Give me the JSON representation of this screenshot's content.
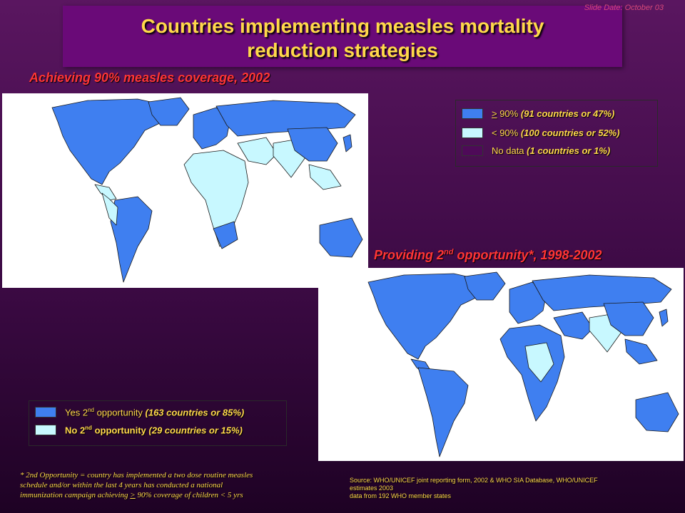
{
  "slide_date": "Slide Date: October 03",
  "title": {
    "line1": "Countries implementing measles mortality",
    "line2": "reduction strategies"
  },
  "map1": {
    "title": "Achieving 90% measles coverage, 2002",
    "legend": [
      {
        "marker": ">",
        "label": " 90%",
        "detail": " (91 countries or  47%)",
        "color": "#3f7ff0"
      },
      {
        "marker": "",
        "label": "< 90%",
        "detail": " (100 countries or 52%)",
        "color": "#c8f8ff"
      },
      {
        "marker": "",
        "label": "No data",
        "detail": " (1 countries or  1%)",
        "color": "#4e0a58"
      }
    ]
  },
  "map2": {
    "title_pre": "Providing 2",
    "title_sup": "nd",
    "title_post": " opportunity*, 1998-2002",
    "legend": [
      {
        "label_pre": "Yes 2",
        "label_sup": "nd",
        "label_post": " opportunity",
        "detail": " (163 countries or 85%)",
        "color": "#3f7ff0"
      },
      {
        "label_pre": "No 2",
        "label_sup": "nd",
        "label_post": " opportunity",
        "detail": " (29 countries or  15%)",
        "color": "#c8f8ff"
      }
    ]
  },
  "footnote": {
    "line1": "* 2nd Opportunity = country has implemented a two dose routine measles",
    "line2": "schedule and/or within the last 4 years has conducted a national",
    "line3_pre": "immunization campaign achieving ",
    "line3_marker": ">",
    "line3_post": " 90% coverage of children < 5 yrs"
  },
  "source": {
    "line1": "Source: WHO/UNICEF joint reporting form, 2002 & WHO SIA Database, WHO/UNICEF",
    "line2": "estimates 2003",
    "line3": "data from 192 WHO member states"
  },
  "colors": {
    "map_blue": "#3f7ff0",
    "map_light": "#c8f8ff",
    "map_nodata": "#4e0a58",
    "title_yellow": "#ffd84a",
    "subtitle_red": "#ff3535"
  }
}
